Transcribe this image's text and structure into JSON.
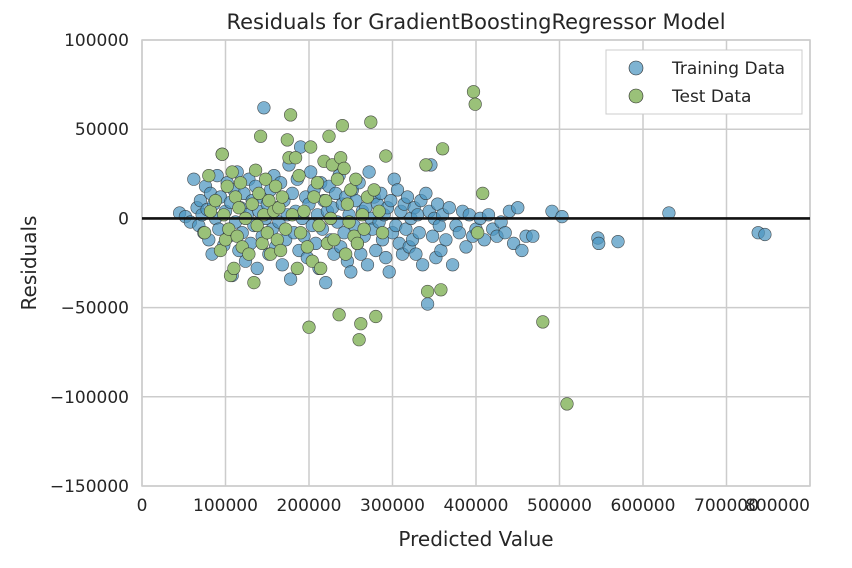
{
  "chart_data": {
    "type": "scatter",
    "title": "Residuals for GradientBoostingRegressor Model",
    "xlabel": "Predicted Value",
    "ylabel": "Residuals",
    "xlim": [
      0,
      800000
    ],
    "ylim": [
      -150000,
      100000
    ],
    "xticks": [
      0,
      100000,
      200000,
      300000,
      400000,
      500000,
      600000,
      700000,
      800000
    ],
    "yticks": [
      100000,
      50000,
      0,
      -50000,
      -100000,
      -150000
    ],
    "xtick_labels": [
      "0",
      "100000",
      "200000",
      "300000",
      "400000",
      "500000",
      "600000",
      "700000",
      "800000"
    ],
    "ytick_labels": [
      "100000",
      "50000",
      "0",
      "−50000",
      "−100000",
      "−150000"
    ],
    "grid": true,
    "legend_position": "top-right",
    "zero_line": 0,
    "series": [
      {
        "name": "Training Data",
        "color": "#4c96c1",
        "points": [
          [
            45000,
            3000
          ],
          [
            52000,
            1000
          ],
          [
            58000,
            -2000
          ],
          [
            62000,
            22000
          ],
          [
            66000,
            6000
          ],
          [
            68000,
            -4000
          ],
          [
            70000,
            10000
          ],
          [
            72000,
            2000
          ],
          [
            74000,
            -8000
          ],
          [
            76000,
            18000
          ],
          [
            78000,
            5000
          ],
          [
            80000,
            -12000
          ],
          [
            82000,
            14000
          ],
          [
            84000,
            -20000
          ],
          [
            86000,
            8000
          ],
          [
            88000,
            0
          ],
          [
            90000,
            24000
          ],
          [
            92000,
            -6000
          ],
          [
            94000,
            12000
          ],
          [
            96000,
            36000
          ],
          [
            98000,
            -15000
          ],
          [
            100000,
            4000
          ],
          [
            102000,
            20000
          ],
          [
            104000,
            -10000
          ],
          [
            106000,
            9000
          ],
          [
            108000,
            -32000
          ],
          [
            110000,
            16000
          ],
          [
            112000,
            -2000
          ],
          [
            114000,
            26000
          ],
          [
            116000,
            -18000
          ],
          [
            118000,
            6000
          ],
          [
            120000,
            -8000
          ],
          [
            122000,
            14000
          ],
          [
            124000,
            -24000
          ],
          [
            126000,
            2000
          ],
          [
            128000,
            22000
          ],
          [
            130000,
            -14000
          ],
          [
            132000,
            10000
          ],
          [
            134000,
            -4000
          ],
          [
            136000,
            18000
          ],
          [
            138000,
            -28000
          ],
          [
            140000,
            4000
          ],
          [
            142000,
            12000
          ],
          [
            144000,
            -10000
          ],
          [
            146000,
            62000
          ],
          [
            148000,
            0
          ],
          [
            150000,
            8000
          ],
          [
            152000,
            -20000
          ],
          [
            154000,
            16000
          ],
          [
            156000,
            -6000
          ],
          [
            158000,
            24000
          ],
          [
            160000,
            -16000
          ],
          [
            162000,
            6000
          ],
          [
            164000,
            -2000
          ],
          [
            166000,
            20000
          ],
          [
            168000,
            -26000
          ],
          [
            170000,
            10000
          ],
          [
            172000,
            -12000
          ],
          [
            174000,
            2000
          ],
          [
            176000,
            30000
          ],
          [
            178000,
            -34000
          ],
          [
            180000,
            14000
          ],
          [
            182000,
            -8000
          ],
          [
            184000,
            4000
          ],
          [
            186000,
            22000
          ],
          [
            188000,
            -18000
          ],
          [
            190000,
            40000
          ],
          [
            192000,
            0
          ],
          [
            194000,
            -10000
          ],
          [
            196000,
            12000
          ],
          [
            198000,
            -22000
          ],
          [
            200000,
            8000
          ],
          [
            202000,
            26000
          ],
          [
            204000,
            -4000
          ],
          [
            206000,
            16000
          ],
          [
            208000,
            -14000
          ],
          [
            210000,
            2000
          ],
          [
            212000,
            -28000
          ],
          [
            214000,
            20000
          ],
          [
            216000,
            -6000
          ],
          [
            218000,
            10000
          ],
          [
            220000,
            -36000
          ],
          [
            222000,
            4000
          ],
          [
            224000,
            18000
          ],
          [
            226000,
            -12000
          ],
          [
            228000,
            6000
          ],
          [
            230000,
            -20000
          ],
          [
            232000,
            14000
          ],
          [
            234000,
            -2000
          ],
          [
            236000,
            24000
          ],
          [
            238000,
            -16000
          ],
          [
            240000,
            8000
          ],
          [
            242000,
            -8000
          ],
          [
            244000,
            12000
          ],
          [
            246000,
            -24000
          ],
          [
            248000,
            2000
          ],
          [
            250000,
            -30000
          ],
          [
            252000,
            16000
          ],
          [
            254000,
            -4000
          ],
          [
            256000,
            10000
          ],
          [
            258000,
            -14000
          ],
          [
            260000,
            20000
          ],
          [
            262000,
            -20000
          ],
          [
            264000,
            4000
          ],
          [
            266000,
            -10000
          ],
          [
            268000,
            6000
          ],
          [
            270000,
            -26000
          ],
          [
            272000,
            26000
          ],
          [
            274000,
            0
          ],
          [
            276000,
            -6000
          ],
          [
            278000,
            12000
          ],
          [
            280000,
            -18000
          ],
          [
            282000,
            8000
          ],
          [
            284000,
            -2000
          ],
          [
            286000,
            14000
          ],
          [
            288000,
            -12000
          ],
          [
            290000,
            2000
          ],
          [
            292000,
            -22000
          ],
          [
            294000,
            6000
          ],
          [
            296000,
            -30000
          ],
          [
            298000,
            10000
          ],
          [
            300000,
            -8000
          ],
          [
            302000,
            22000
          ],
          [
            304000,
            -4000
          ],
          [
            306000,
            16000
          ],
          [
            308000,
            -14000
          ],
          [
            310000,
            4000
          ],
          [
            312000,
            -20000
          ],
          [
            314000,
            8000
          ],
          [
            316000,
            -6000
          ],
          [
            318000,
            12000
          ],
          [
            320000,
            -16000
          ],
          [
            322000,
            0
          ],
          [
            324000,
            -12000
          ],
          [
            326000,
            6000
          ],
          [
            328000,
            -20000
          ],
          [
            330000,
            2000
          ],
          [
            332000,
            -8000
          ],
          [
            334000,
            10000
          ],
          [
            336000,
            -26000
          ],
          [
            340000,
            14000
          ],
          [
            342000,
            -48000
          ],
          [
            344000,
            4000
          ],
          [
            346000,
            30000
          ],
          [
            348000,
            -10000
          ],
          [
            350000,
            0
          ],
          [
            352000,
            -22000
          ],
          [
            354000,
            8000
          ],
          [
            356000,
            -4000
          ],
          [
            358000,
            -18000
          ],
          [
            360000,
            2000
          ],
          [
            364000,
            -12000
          ],
          [
            368000,
            6000
          ],
          [
            372000,
            -26000
          ],
          [
            376000,
            -4000
          ],
          [
            380000,
            -8000
          ],
          [
            384000,
            4000
          ],
          [
            388000,
            -16000
          ],
          [
            392000,
            2000
          ],
          [
            396000,
            -10000
          ],
          [
            400000,
            -6000
          ],
          [
            405000,
            0
          ],
          [
            410000,
            -12000
          ],
          [
            415000,
            2000
          ],
          [
            420000,
            -6000
          ],
          [
            425000,
            -10000
          ],
          [
            430000,
            -2000
          ],
          [
            435000,
            -8000
          ],
          [
            440000,
            4000
          ],
          [
            445000,
            -14000
          ],
          [
            450000,
            6000
          ],
          [
            455000,
            -18000
          ],
          [
            460000,
            -10000
          ],
          [
            468000,
            -10000
          ],
          [
            491000,
            4000
          ],
          [
            503000,
            1000
          ],
          [
            546000,
            -11000
          ],
          [
            547000,
            -14000
          ],
          [
            570000,
            -13000
          ],
          [
            631000,
            3000
          ],
          [
            738000,
            -8000
          ],
          [
            746000,
            -9000
          ]
        ]
      },
      {
        "name": "Test Data",
        "color": "#9ac179",
        "points": [
          [
            75000,
            -8000
          ],
          [
            80000,
            24000
          ],
          [
            82000,
            4000
          ],
          [
            88000,
            10000
          ],
          [
            94000,
            -18000
          ],
          [
            96000,
            36000
          ],
          [
            98000,
            2000
          ],
          [
            100000,
            -12000
          ],
          [
            102000,
            18000
          ],
          [
            104000,
            -6000
          ],
          [
            106000,
            -32000
          ],
          [
            108000,
            26000
          ],
          [
            110000,
            -28000
          ],
          [
            112000,
            12000
          ],
          [
            114000,
            -10000
          ],
          [
            116000,
            6000
          ],
          [
            118000,
            20000
          ],
          [
            120000,
            -16000
          ],
          [
            124000,
            0
          ],
          [
            128000,
            -20000
          ],
          [
            132000,
            8000
          ],
          [
            134000,
            -36000
          ],
          [
            136000,
            27000
          ],
          [
            138000,
            -4000
          ],
          [
            140000,
            14000
          ],
          [
            142000,
            46000
          ],
          [
            144000,
            -14000
          ],
          [
            146000,
            2000
          ],
          [
            148000,
            22000
          ],
          [
            150000,
            -8000
          ],
          [
            152000,
            10000
          ],
          [
            154000,
            -20000
          ],
          [
            158000,
            4000
          ],
          [
            160000,
            18000
          ],
          [
            162000,
            -12000
          ],
          [
            164000,
            6000
          ],
          [
            166000,
            -18000
          ],
          [
            168000,
            12000
          ],
          [
            172000,
            -6000
          ],
          [
            174000,
            44000
          ],
          [
            176000,
            34000
          ],
          [
            178000,
            58000
          ],
          [
            180000,
            2000
          ],
          [
            184000,
            34000
          ],
          [
            186000,
            -28000
          ],
          [
            188000,
            24000
          ],
          [
            190000,
            -8000
          ],
          [
            194000,
            4000
          ],
          [
            198000,
            -16000
          ],
          [
            200000,
            -61000
          ],
          [
            202000,
            40000
          ],
          [
            204000,
            -24000
          ],
          [
            206000,
            12000
          ],
          [
            210000,
            20000
          ],
          [
            212000,
            -4000
          ],
          [
            214000,
            -28000
          ],
          [
            218000,
            32000
          ],
          [
            220000,
            10000
          ],
          [
            222000,
            -14000
          ],
          [
            224000,
            46000
          ],
          [
            226000,
            0
          ],
          [
            228000,
            30000
          ],
          [
            230000,
            -12000
          ],
          [
            234000,
            22000
          ],
          [
            236000,
            -54000
          ],
          [
            238000,
            34000
          ],
          [
            240000,
            52000
          ],
          [
            242000,
            28000
          ],
          [
            244000,
            -20000
          ],
          [
            246000,
            8000
          ],
          [
            248000,
            -2000
          ],
          [
            250000,
            16000
          ],
          [
            254000,
            -10000
          ],
          [
            256000,
            22000
          ],
          [
            258000,
            -14000
          ],
          [
            260000,
            -68000
          ],
          [
            262000,
            -59000
          ],
          [
            264000,
            2000
          ],
          [
            266000,
            -6000
          ],
          [
            270000,
            12000
          ],
          [
            274000,
            54000
          ],
          [
            278000,
            16000
          ],
          [
            280000,
            -55000
          ],
          [
            284000,
            4000
          ],
          [
            288000,
            -8000
          ],
          [
            292000,
            35000
          ],
          [
            340000,
            30000
          ],
          [
            342000,
            -41000
          ],
          [
            358000,
            -40000
          ],
          [
            360000,
            39000
          ],
          [
            397000,
            71000
          ],
          [
            399000,
            64000
          ],
          [
            402000,
            -8000
          ],
          [
            408000,
            14000
          ],
          [
            480000,
            -58000
          ],
          [
            509000,
            -104000
          ]
        ]
      }
    ]
  }
}
